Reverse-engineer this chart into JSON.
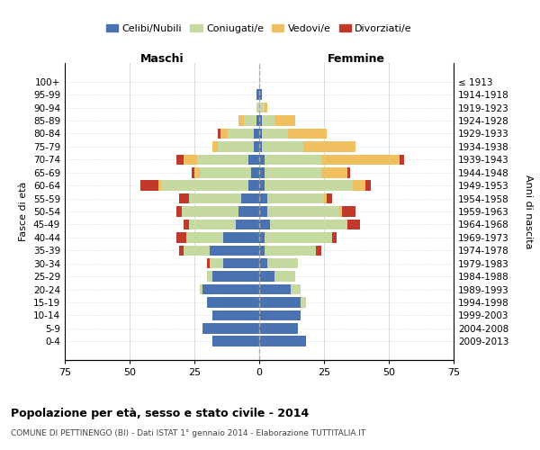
{
  "age_groups": [
    "0-4",
    "5-9",
    "10-14",
    "15-19",
    "20-24",
    "25-29",
    "30-34",
    "35-39",
    "40-44",
    "45-49",
    "50-54",
    "55-59",
    "60-64",
    "65-69",
    "70-74",
    "75-79",
    "80-84",
    "85-89",
    "90-94",
    "95-99",
    "100+"
  ],
  "birth_years": [
    "2009-2013",
    "2004-2008",
    "1999-2003",
    "1994-1998",
    "1989-1993",
    "1984-1988",
    "1979-1983",
    "1974-1978",
    "1969-1973",
    "1964-1968",
    "1959-1963",
    "1954-1958",
    "1949-1953",
    "1944-1948",
    "1939-1943",
    "1934-1938",
    "1929-1933",
    "1924-1928",
    "1919-1923",
    "1914-1918",
    "≤ 1913"
  ],
  "maschi": {
    "celibi": [
      18,
      22,
      18,
      20,
      22,
      18,
      14,
      19,
      14,
      9,
      8,
      7,
      4,
      3,
      4,
      2,
      2,
      1,
      0,
      1,
      0
    ],
    "coniugati": [
      0,
      0,
      0,
      0,
      1,
      2,
      5,
      10,
      14,
      18,
      22,
      20,
      34,
      20,
      20,
      14,
      10,
      5,
      1,
      0,
      0
    ],
    "vedovi": [
      0,
      0,
      0,
      0,
      0,
      0,
      0,
      0,
      0,
      0,
      0,
      0,
      1,
      2,
      5,
      2,
      3,
      2,
      0,
      0,
      0
    ],
    "divorziati": [
      0,
      0,
      0,
      0,
      0,
      0,
      1,
      2,
      4,
      2,
      2,
      4,
      7,
      1,
      3,
      0,
      1,
      0,
      0,
      0,
      0
    ]
  },
  "femmine": {
    "nubili": [
      18,
      15,
      16,
      16,
      12,
      6,
      3,
      2,
      2,
      4,
      3,
      3,
      2,
      2,
      2,
      1,
      1,
      1,
      0,
      1,
      0
    ],
    "coniugate": [
      0,
      0,
      0,
      2,
      4,
      8,
      12,
      20,
      26,
      30,
      28,
      22,
      34,
      22,
      22,
      16,
      10,
      5,
      2,
      0,
      0
    ],
    "vedove": [
      0,
      0,
      0,
      0,
      0,
      0,
      0,
      0,
      0,
      0,
      1,
      1,
      5,
      10,
      30,
      20,
      15,
      8,
      1,
      0,
      0
    ],
    "divorziate": [
      0,
      0,
      0,
      0,
      0,
      0,
      0,
      2,
      2,
      5,
      5,
      2,
      2,
      1,
      2,
      0,
      0,
      0,
      0,
      0,
      0
    ]
  },
  "colors": {
    "celibi": "#4a72b0",
    "coniugati": "#c5d9a0",
    "vedovi": "#f0c060",
    "divorziati": "#c0392b"
  },
  "xlim": 75,
  "title": "Popolazione per età, sesso e stato civile - 2014",
  "subtitle": "COMUNE DI PETTINENGO (BI) - Dati ISTAT 1° gennaio 2014 - Elaborazione TUTTITALIA.IT",
  "ylabel": "Fasce di età",
  "ylabel_right": "Anni di nascita",
  "legend_labels": [
    "Celibi/Nubili",
    "Coniugati/e",
    "Vedovi/e",
    "Divorziati/e"
  ]
}
